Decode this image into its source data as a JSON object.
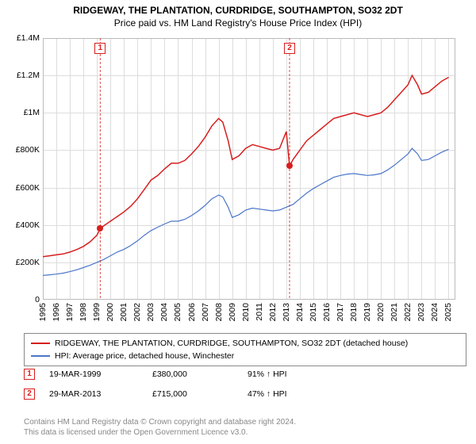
{
  "title": {
    "main": "RIDGEWAY, THE PLANTATION, CURDRIDGE, SOUTHAMPTON, SO32 2DT",
    "sub": "Price paid vs. HM Land Registry's House Price Index (HPI)",
    "main_fontsize": 12,
    "sub_fontsize": 12
  },
  "chart": {
    "type": "line",
    "background_color": "#ffffff",
    "grid_color": "#dddddd",
    "border_color": "#bbbbbb",
    "x": {
      "min": 1995,
      "max": 2025.5,
      "ticks": [
        1995,
        1996,
        1997,
        1998,
        1999,
        2000,
        2001,
        2002,
        2003,
        2004,
        2005,
        2006,
        2007,
        2008,
        2009,
        2010,
        2011,
        2012,
        2013,
        2014,
        2015,
        2016,
        2017,
        2018,
        2019,
        2020,
        2021,
        2022,
        2023,
        2024,
        2025
      ],
      "tick_labels": [
        "1995",
        "1996",
        "1997",
        "1998",
        "1999",
        "2000",
        "2001",
        "2002",
        "2003",
        "2004",
        "2005",
        "2006",
        "2007",
        "2008",
        "2009",
        "2010",
        "2011",
        "2012",
        "2013",
        "2014",
        "2015",
        "2016",
        "2017",
        "2018",
        "2019",
        "2020",
        "2021",
        "2022",
        "2023",
        "2024",
        "2025"
      ]
    },
    "y": {
      "min": 0,
      "max": 1400000,
      "ticks": [
        0,
        200000,
        400000,
        600000,
        800000,
        1000000,
        1200000,
        1400000
      ],
      "tick_labels": [
        "0",
        "£200K",
        "£400K",
        "£600K",
        "£800K",
        "£1M",
        "£1.2M",
        "£1.4M"
      ]
    },
    "series": [
      {
        "name": "RIDGEWAY, THE PLANTATION, CURDRIDGE, SOUTHAMPTON, SO32 2DT (detached house)",
        "color": "#d81e1e",
        "line_width": 1.5,
        "xy": [
          [
            1995,
            230000
          ],
          [
            1995.5,
            235000
          ],
          [
            1996,
            240000
          ],
          [
            1996.5,
            245000
          ],
          [
            1997,
            255000
          ],
          [
            1997.5,
            268000
          ],
          [
            1998,
            285000
          ],
          [
            1998.5,
            310000
          ],
          [
            1999,
            345000
          ],
          [
            1999.24,
            380000
          ],
          [
            1999.5,
            395000
          ],
          [
            2000,
            420000
          ],
          [
            2000.5,
            445000
          ],
          [
            2001,
            470000
          ],
          [
            2001.5,
            500000
          ],
          [
            2002,
            540000
          ],
          [
            2002.5,
            590000
          ],
          [
            2003,
            640000
          ],
          [
            2003.5,
            665000
          ],
          [
            2004,
            700000
          ],
          [
            2004.5,
            730000
          ],
          [
            2005,
            730000
          ],
          [
            2005.5,
            745000
          ],
          [
            2006,
            780000
          ],
          [
            2006.5,
            820000
          ],
          [
            2007,
            870000
          ],
          [
            2007.5,
            930000
          ],
          [
            2008,
            970000
          ],
          [
            2008.3,
            950000
          ],
          [
            2008.7,
            850000
          ],
          [
            2009,
            750000
          ],
          [
            2009.5,
            770000
          ],
          [
            2010,
            810000
          ],
          [
            2010.5,
            830000
          ],
          [
            2011,
            820000
          ],
          [
            2011.5,
            810000
          ],
          [
            2012,
            800000
          ],
          [
            2012.5,
            810000
          ],
          [
            2013,
            900000
          ],
          [
            2013.24,
            715000
          ],
          [
            2013.5,
            750000
          ],
          [
            2014,
            800000
          ],
          [
            2014.5,
            850000
          ],
          [
            2015,
            880000
          ],
          [
            2015.5,
            910000
          ],
          [
            2016,
            940000
          ],
          [
            2016.5,
            970000
          ],
          [
            2017,
            980000
          ],
          [
            2017.5,
            990000
          ],
          [
            2018,
            1000000
          ],
          [
            2018.5,
            990000
          ],
          [
            2019,
            980000
          ],
          [
            2019.5,
            990000
          ],
          [
            2020,
            1000000
          ],
          [
            2020.5,
            1030000
          ],
          [
            2021,
            1070000
          ],
          [
            2021.5,
            1110000
          ],
          [
            2022,
            1150000
          ],
          [
            2022.3,
            1200000
          ],
          [
            2022.7,
            1150000
          ],
          [
            2023,
            1100000
          ],
          [
            2023.5,
            1110000
          ],
          [
            2024,
            1140000
          ],
          [
            2024.5,
            1170000
          ],
          [
            2025,
            1190000
          ]
        ]
      },
      {
        "name": "HPI: Average price, detached house, Winchester",
        "color": "#4a76c9",
        "line_width": 1.2,
        "xy": [
          [
            1995,
            130000
          ],
          [
            1995.5,
            133000
          ],
          [
            1996,
            137000
          ],
          [
            1996.5,
            142000
          ],
          [
            1997,
            150000
          ],
          [
            1997.5,
            160000
          ],
          [
            1998,
            172000
          ],
          [
            1998.5,
            185000
          ],
          [
            1999,
            200000
          ],
          [
            1999.5,
            215000
          ],
          [
            2000,
            235000
          ],
          [
            2000.5,
            255000
          ],
          [
            2001,
            270000
          ],
          [
            2001.5,
            290000
          ],
          [
            2002,
            315000
          ],
          [
            2002.5,
            345000
          ],
          [
            2003,
            370000
          ],
          [
            2003.5,
            388000
          ],
          [
            2004,
            405000
          ],
          [
            2004.5,
            420000
          ],
          [
            2005,
            420000
          ],
          [
            2005.5,
            430000
          ],
          [
            2006,
            450000
          ],
          [
            2006.5,
            475000
          ],
          [
            2007,
            505000
          ],
          [
            2007.5,
            540000
          ],
          [
            2008,
            560000
          ],
          [
            2008.3,
            550000
          ],
          [
            2008.7,
            495000
          ],
          [
            2009,
            440000
          ],
          [
            2009.5,
            455000
          ],
          [
            2010,
            480000
          ],
          [
            2010.5,
            490000
          ],
          [
            2011,
            485000
          ],
          [
            2011.5,
            480000
          ],
          [
            2012,
            475000
          ],
          [
            2012.5,
            480000
          ],
          [
            2013,
            495000
          ],
          [
            2013.5,
            510000
          ],
          [
            2014,
            540000
          ],
          [
            2014.5,
            570000
          ],
          [
            2015,
            595000
          ],
          [
            2015.5,
            615000
          ],
          [
            2016,
            635000
          ],
          [
            2016.5,
            655000
          ],
          [
            2017,
            665000
          ],
          [
            2017.5,
            672000
          ],
          [
            2018,
            675000
          ],
          [
            2018.5,
            670000
          ],
          [
            2019,
            665000
          ],
          [
            2019.5,
            668000
          ],
          [
            2020,
            675000
          ],
          [
            2020.5,
            695000
          ],
          [
            2021,
            720000
          ],
          [
            2021.5,
            750000
          ],
          [
            2022,
            780000
          ],
          [
            2022.3,
            810000
          ],
          [
            2022.7,
            780000
          ],
          [
            2023,
            745000
          ],
          [
            2023.5,
            750000
          ],
          [
            2024,
            770000
          ],
          [
            2024.5,
            790000
          ],
          [
            2025,
            805000
          ]
        ]
      }
    ],
    "sale_markers": [
      {
        "id": "1",
        "x": 1999.24,
        "y": 380000,
        "color": "#d81e1e"
      },
      {
        "id": "2",
        "x": 2013.24,
        "y": 715000,
        "color": "#d81e1e"
      }
    ]
  },
  "legend": {
    "items": [
      {
        "color": "#d81e1e",
        "label": "RIDGEWAY, THE PLANTATION, CURDRIDGE, SOUTHAMPTON, SO32 2DT (detached house)"
      },
      {
        "color": "#4a76c9",
        "label": "HPI: Average price, detached house, Winchester"
      }
    ]
  },
  "sales": [
    {
      "id": "1",
      "color": "#d81e1e",
      "date": "19-MAR-1999",
      "price": "£380,000",
      "pct": "91% ↑ HPI"
    },
    {
      "id": "2",
      "color": "#d81e1e",
      "date": "29-MAR-2013",
      "price": "£715,000",
      "pct": "47% ↑ HPI"
    }
  ],
  "footer": {
    "line1": "Contains HM Land Registry data © Crown copyright and database right 2024.",
    "line2": "This data is licensed under the Open Government Licence v3.0."
  }
}
